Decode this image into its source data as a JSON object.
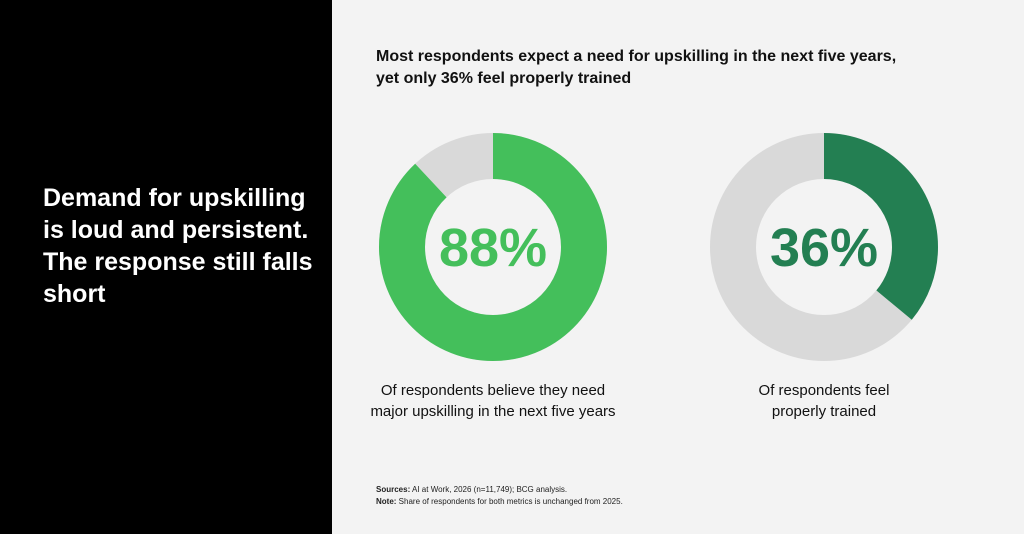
{
  "left": {
    "headline": "Demand for upskilling is loud and persistent. The response still falls short"
  },
  "chart_title": "Most respondents expect a need for upskilling in the next five years, yet only 36% feel properly trained",
  "colors": {
    "left_background": "#000000",
    "right_background": "#f3f3f3",
    "track": "#d9d9d9",
    "green_light": "#44bf5b",
    "green_dark": "#237f52"
  },
  "chart_data": [
    {
      "type": "pie",
      "variant": "donut",
      "value": 88,
      "remainder": 12,
      "center_label": "88%",
      "caption": "Of respondents believe they need major upskilling in the next five years",
      "color": "#44bf5b"
    },
    {
      "type": "pie",
      "variant": "donut",
      "value": 36,
      "remainder": 64,
      "center_label": "36%",
      "caption": "Of respondents feel properly trained",
      "color": "#237f52"
    }
  ],
  "footnote": {
    "sources_label": "Sources:",
    "sources_text": " AI at Work, 2026 (n=11,749); BCG analysis.",
    "note_label": "Note:",
    "note_text": " Share of respondents for both metrics is unchanged from 2025."
  }
}
